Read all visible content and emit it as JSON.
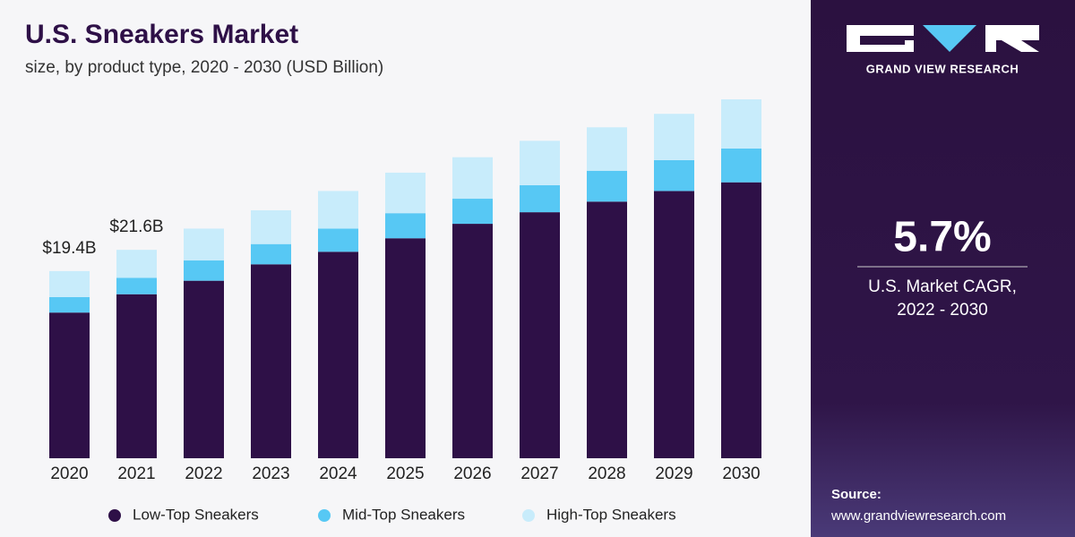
{
  "chart_data": {
    "type": "bar",
    "stacked": true,
    "title": "U.S. Sneakers Market",
    "subtitle": "size, by product type, 2020 - 2030 (USD Billion)",
    "categories": [
      "2020",
      "2021",
      "2022",
      "2023",
      "2024",
      "2025",
      "2026",
      "2027",
      "2028",
      "2029",
      "2030"
    ],
    "series": [
      {
        "name": "Low-Top Sneakers",
        "color": "#2e1047",
        "values": [
          15.1,
          17.0,
          18.4,
          20.1,
          21.4,
          22.8,
          24.3,
          25.5,
          26.6,
          27.7,
          28.6
        ]
      },
      {
        "name": "Mid-Top Sneakers",
        "color": "#57c8f4",
        "values": [
          1.6,
          1.7,
          2.1,
          2.1,
          2.4,
          2.6,
          2.6,
          2.8,
          3.2,
          3.2,
          3.5
        ]
      },
      {
        "name": "High-Top Sneakers",
        "color": "#c8ecfb",
        "values": [
          2.7,
          2.9,
          3.3,
          3.5,
          3.9,
          4.2,
          4.3,
          4.6,
          4.5,
          4.8,
          5.1
        ]
      }
    ],
    "annotations": [
      {
        "category": "2020",
        "value": 19.4,
        "label": "$19.4B"
      },
      {
        "category": "2021",
        "value": 21.6,
        "label": "$21.6B"
      }
    ],
    "legend": "bottom"
  },
  "side_panel": {
    "brand": "GRAND VIEW RESEARCH",
    "stat": "5.7%",
    "stat_caption": [
      "U.S. Market CAGR,",
      "2022 - 2030"
    ],
    "source_label": "Source:",
    "source": "www.grandviewresearch.com"
  }
}
